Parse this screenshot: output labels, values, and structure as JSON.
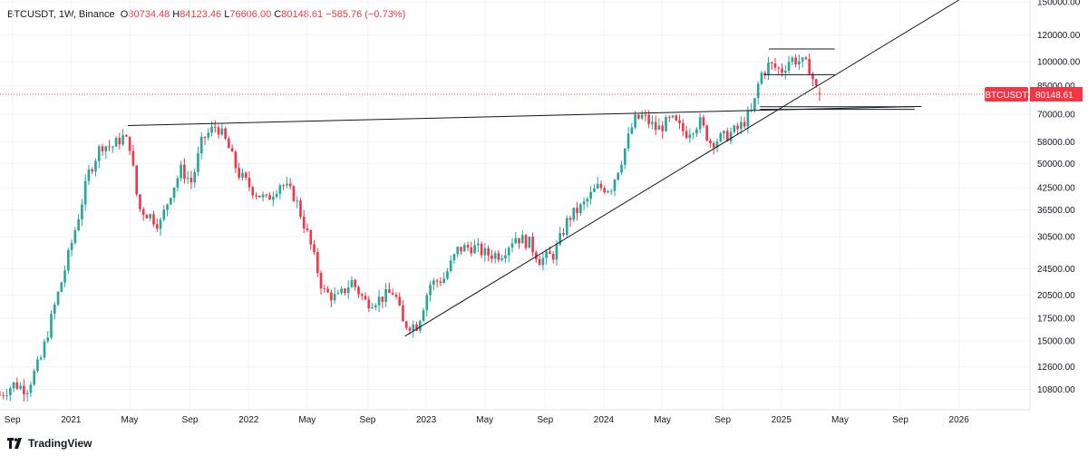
{
  "header": {
    "symbol": "BTCUSDT",
    "interval": "1W",
    "exchange": "Binance",
    "open_label": "O",
    "open": "80734.48",
    "high_label": "H",
    "high": "84123.46",
    "low_label": "L",
    "low": "76606.00",
    "close_label": "C",
    "close": "80148.61",
    "change": "−585.76 (−0.73%)"
  },
  "brand": {
    "name": "TradingView"
  },
  "colors": {
    "up": "#26a69a",
    "down": "#f23645",
    "line": "#131722",
    "grid": "#f0f3fa"
  },
  "chart_data": {
    "type": "candlestick",
    "title": "BTCUSDT, 1W, Binance",
    "scale": "log",
    "ylim": [
      9400,
      152000
    ],
    "y_ticks": [
      150000,
      120000,
      100000,
      85000,
      70000,
      58000,
      50000,
      42500,
      36500,
      30500,
      24500,
      20500,
      17500,
      15000,
      12600,
      10800
    ],
    "y_tick_labels": [
      "150000.00",
      "120000.00",
      "100000.00",
      "85000.00",
      "70000.00",
      "58000.00",
      "50000.00",
      "42500.00",
      "36500.00",
      "30500.00",
      "24500.00",
      "20500.00",
      "17500.00",
      "15000.00",
      "12600.00",
      "10800.00"
    ],
    "x_tick_labels": [
      "Sep",
      "2021",
      "May",
      "Sep",
      "2022",
      "May",
      "Sep",
      "2023",
      "May",
      "Sep",
      "2024",
      "May",
      "Sep",
      "2025",
      "May",
      "Sep",
      "2026"
    ],
    "x_tick_dates": [
      2020.67,
      2021.0,
      2021.33,
      2021.67,
      2022.0,
      2022.33,
      2022.67,
      2023.0,
      2023.33,
      2023.67,
      2024.0,
      2024.33,
      2024.67,
      2025.0,
      2025.33,
      2025.67,
      2026.0
    ],
    "x_range": [
      2020.6,
      2026.4
    ],
    "last_price": {
      "symbol": "BTCUSDT",
      "value": "80148.61",
      "price": 80148.61
    },
    "anchors": [
      [
        2020.6,
        10400
      ],
      [
        2020.68,
        11200
      ],
      [
        2020.75,
        10800
      ],
      [
        2020.83,
        13300
      ],
      [
        2020.9,
        18400
      ],
      [
        2020.96,
        23800
      ],
      [
        2021.03,
        33000
      ],
      [
        2021.1,
        47000
      ],
      [
        2021.17,
        57000
      ],
      [
        2021.23,
        56000
      ],
      [
        2021.29,
        60000
      ],
      [
        2021.33,
        57000
      ],
      [
        2021.38,
        37000
      ],
      [
        2021.45,
        35000
      ],
      [
        2021.5,
        33000
      ],
      [
        2021.56,
        41000
      ],
      [
        2021.62,
        48000
      ],
      [
        2021.68,
        44000
      ],
      [
        2021.74,
        59000
      ],
      [
        2021.82,
        65000
      ],
      [
        2021.88,
        57000
      ],
      [
        2021.94,
        47000
      ],
      [
        2022.02,
        42000
      ],
      [
        2022.1,
        39000
      ],
      [
        2022.18,
        44000
      ],
      [
        2022.26,
        40000
      ],
      [
        2022.34,
        30000
      ],
      [
        2022.42,
        21000
      ],
      [
        2022.5,
        20000
      ],
      [
        2022.58,
        22500
      ],
      [
        2022.66,
        19500
      ],
      [
        2022.74,
        20000
      ],
      [
        2022.82,
        21000
      ],
      [
        2022.87,
        16800
      ],
      [
        2022.95,
        16700
      ],
      [
        2023.02,
        22000
      ],
      [
        2023.1,
        23000
      ],
      [
        2023.18,
        28000
      ],
      [
        2023.26,
        28500
      ],
      [
        2023.34,
        27000
      ],
      [
        2023.42,
        27000
      ],
      [
        2023.5,
        30500
      ],
      [
        2023.58,
        29200
      ],
      [
        2023.64,
        26000
      ],
      [
        2023.72,
        27000
      ],
      [
        2023.8,
        34500
      ],
      [
        2023.88,
        37500
      ],
      [
        2023.96,
        42500
      ],
      [
        2024.04,
        42500
      ],
      [
        2024.1,
        51500
      ],
      [
        2024.17,
        67000
      ],
      [
        2024.22,
        69000
      ],
      [
        2024.3,
        63000
      ],
      [
        2024.38,
        67500
      ],
      [
        2024.46,
        61500
      ],
      [
        2024.54,
        66500
      ],
      [
        2024.6,
        58000
      ],
      [
        2024.68,
        60000
      ],
      [
        2024.76,
        63500
      ],
      [
        2024.84,
        72000
      ],
      [
        2024.88,
        91000
      ],
      [
        2024.93,
        98000
      ],
      [
        2025.0,
        94000
      ],
      [
        2025.05,
        102000
      ],
      [
        2025.1,
        100500
      ],
      [
        2025.16,
        96000
      ],
      [
        2025.19,
        84000
      ],
      [
        2025.22,
        80148.61
      ]
    ],
    "drawings": [
      {
        "name": "resistance-trendline",
        "from": [
          2021.32,
          64800
        ],
        "to": [
          2025.79,
          73800
        ]
      },
      {
        "name": "support-trendline",
        "from": [
          2022.88,
          15500
        ],
        "to": [
          2026.0,
          152000
        ]
      },
      {
        "name": "range-line-high",
        "from": [
          2024.93,
          109000
        ],
        "to": [
          2025.3,
          109000
        ]
      },
      {
        "name": "range-line-mid",
        "from": [
          2024.9,
          91500
        ],
        "to": [
          2025.3,
          91500
        ]
      },
      {
        "name": "zone-box-top",
        "from": [
          2024.88,
          73600
        ],
        "to": [
          2025.75,
          73600
        ]
      },
      {
        "name": "zone-box-bottom",
        "from": [
          2024.88,
          72300
        ],
        "to": [
          2025.75,
          72300
        ]
      }
    ]
  }
}
